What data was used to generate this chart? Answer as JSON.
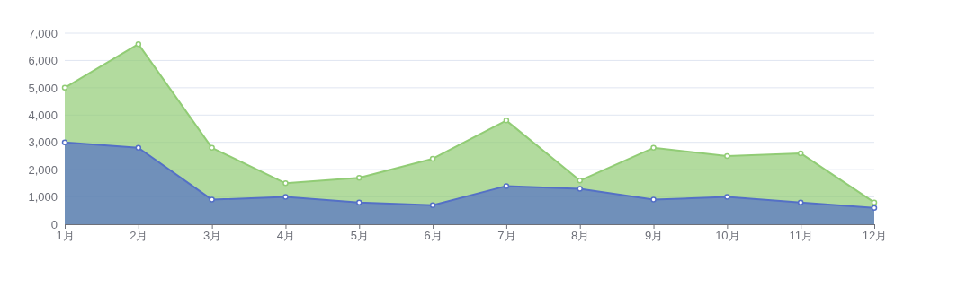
{
  "chart_data": {
    "type": "area",
    "categories": [
      "1月",
      "2月",
      "3月",
      "4月",
      "5月",
      "6月",
      "7月",
      "8月",
      "9月",
      "10月",
      "11月",
      "12月"
    ],
    "series": [
      {
        "color": "#91cc75",
        "values": [
          5000,
          6600,
          2800,
          1500,
          1700,
          2400,
          3800,
          1600,
          2800,
          2500,
          2600,
          800
        ]
      },
      {
        "color": "#5470c6",
        "values": [
          3000,
          2800,
          900,
          1000,
          800,
          700,
          1400,
          1300,
          900,
          1000,
          800,
          600
        ]
      }
    ],
    "ylim": [
      0,
      7000
    ],
    "yticks": [
      {
        "value": 0,
        "label": "0"
      },
      {
        "value": 1000,
        "label": "1,000"
      },
      {
        "value": 2000,
        "label": "2,000"
      },
      {
        "value": 3000,
        "label": "3,000"
      },
      {
        "value": 4000,
        "label": "4,000"
      },
      {
        "value": 5000,
        "label": "5,000"
      },
      {
        "value": 6000,
        "label": "6,000"
      },
      {
        "value": 7000,
        "label": "7,000"
      }
    ],
    "grid": "y",
    "marker": "circle"
  }
}
